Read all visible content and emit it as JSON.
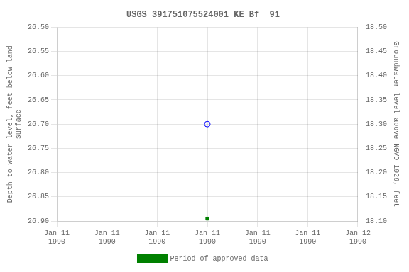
{
  "chart_data": {
    "type": "scatter",
    "title": "USGS 391751075524001 KE Bf  91",
    "y_label": "Depth to water level, feet below land\nsurface",
    "y2_label": "Groundwater level above NGVD 1929, feet",
    "categories": [
      "Jan 11\n1990",
      "Jan 11\n1990",
      "Jan 11\n1990",
      "Jan 11\n1990",
      "Jan 11\n1990",
      "Jan 11\n1990",
      "Jan 12\n1990"
    ],
    "series": [
      {
        "color": "#0000ff",
        "marker": "circle-open",
        "values": [
          null,
          null,
          null,
          26.7,
          null,
          null,
          null
        ]
      },
      {
        "name": "Period of approved data",
        "color": "#008000",
        "marker": "square",
        "values": [
          null,
          null,
          null,
          26.895,
          null,
          null,
          null
        ]
      }
    ],
    "ylim": [
      26.9,
      26.5
    ],
    "yticks": [
      {
        "value": 26.5,
        "label": "26.50"
      },
      {
        "value": 26.55,
        "label": "26.55"
      },
      {
        "value": 26.6,
        "label": "26.60"
      },
      {
        "value": 26.65,
        "label": "26.65"
      },
      {
        "value": 26.7,
        "label": "26.70"
      },
      {
        "value": 26.75,
        "label": "26.75"
      },
      {
        "value": 26.8,
        "label": "26.80"
      },
      {
        "value": 26.85,
        "label": "26.85"
      },
      {
        "value": 26.9,
        "label": "26.90"
      }
    ],
    "y2lim": [
      18.1,
      18.5
    ],
    "y2ticks": [
      {
        "value": 18.1,
        "label": "18.10"
      },
      {
        "value": 18.15,
        "label": "18.15"
      },
      {
        "value": 18.2,
        "label": "18.20"
      },
      {
        "value": 18.25,
        "label": "18.25"
      },
      {
        "value": 18.3,
        "label": "18.30"
      },
      {
        "value": 18.35,
        "label": "18.35"
      },
      {
        "value": 18.4,
        "label": "18.40"
      },
      {
        "value": 18.45,
        "label": "18.45"
      },
      {
        "value": 18.5,
        "label": "18.50"
      }
    ],
    "grid": true,
    "legend": "bottom"
  }
}
